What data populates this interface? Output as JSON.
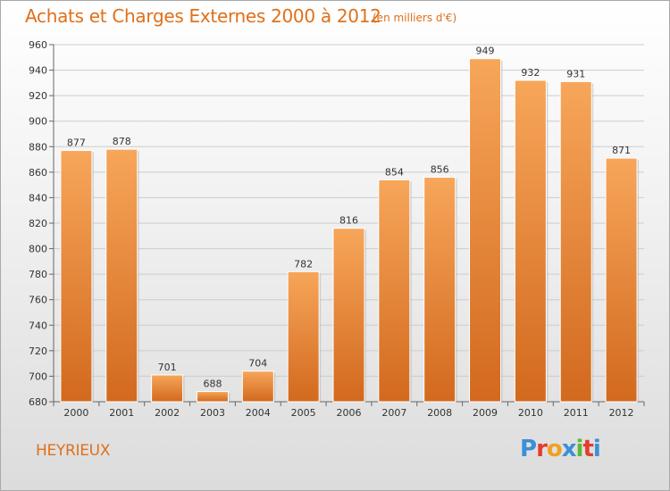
{
  "chart_data": {
    "type": "bar",
    "title": "Achats et Charges Externes 2000 à 2012",
    "subtitle": "(en milliers d'€)",
    "categories": [
      "2000",
      "2001",
      "2002",
      "2003",
      "2004",
      "2005",
      "2006",
      "2007",
      "2008",
      "2009",
      "2010",
      "2011",
      "2012"
    ],
    "values": [
      877,
      878,
      701,
      688,
      704,
      782,
      816,
      854,
      856,
      949,
      932,
      931,
      871
    ],
    "ylim": [
      680,
      960
    ],
    "yticks": [
      680,
      700,
      720,
      740,
      760,
      780,
      800,
      820,
      840,
      860,
      880,
      900,
      920,
      940,
      960
    ],
    "grid": true,
    "bar_color_top": "#f7a65a",
    "bar_color_bottom": "#d2691e"
  },
  "footer": {
    "place": "HEYRIEUX",
    "logo": "Proxiti",
    "logo_colors": [
      "#3a8fd8",
      "#e63c2e",
      "#f0a020",
      "#3a8fd8",
      "#5cb833",
      "#e63c2e",
      "#3a8fd8"
    ]
  },
  "colors": {
    "accent": "#e0701a",
    "grid": "#cccccc"
  }
}
